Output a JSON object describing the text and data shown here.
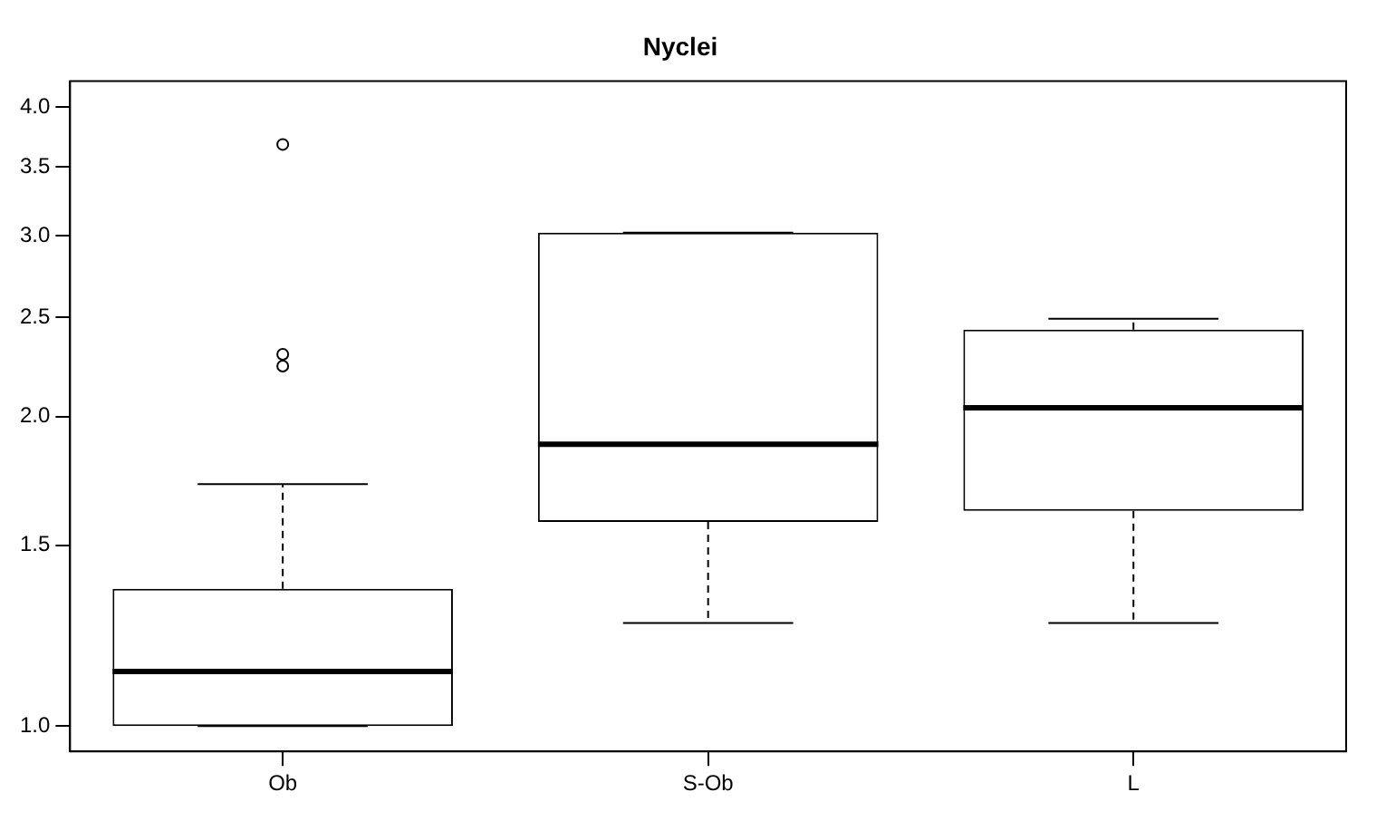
{
  "chart_data": {
    "type": "box",
    "title": "Nyclei",
    "categories": [
      "Ob",
      "S-Ob",
      "L"
    ],
    "boxes": [
      {
        "low": 1.0,
        "q1": 1.0,
        "median": 1.13,
        "q3": 1.36,
        "high": 1.72,
        "outliers": [
          3.68,
          2.3,
          2.24
        ]
      },
      {
        "low": 1.26,
        "q1": 1.58,
        "median": 1.88,
        "q3": 3.02,
        "high": 3.02
      },
      {
        "low": 1.26,
        "q1": 1.62,
        "median": 2.04,
        "q3": 2.43,
        "high": 2.49
      }
    ],
    "log": true,
    "ylim": [
      0.945,
      4.24
    ],
    "yticks": [
      {
        "value": 1,
        "label": "1.0"
      },
      {
        "value": 1.5,
        "label": "1.5"
      },
      {
        "value": 2,
        "label": "2.0"
      },
      {
        "value": 2.5,
        "label": "2.5"
      },
      {
        "value": 3,
        "label": "3.0"
      },
      {
        "value": 3.5,
        "label": "3.5"
      },
      {
        "value": 4,
        "label": "4.0"
      }
    ],
    "grid": false
  }
}
